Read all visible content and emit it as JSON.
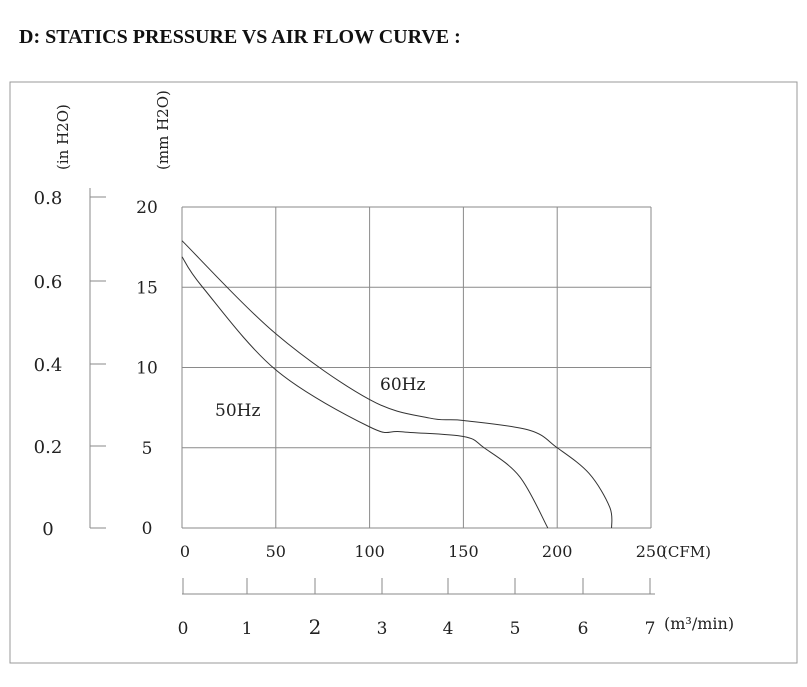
{
  "chart_data": {
    "type": "line",
    "title": "D: STATICS PRESSURE VS AIR FLOW CURVE :",
    "xlabel": "(CFM)",
    "x2label": "(m³/min)",
    "ylabel": "(mm H2O)",
    "y2label": "(in H2O)",
    "xlim": [
      0,
      250
    ],
    "ylim": [
      0,
      20
    ],
    "x_ticks": [
      "0",
      "50",
      "100",
      "150",
      "200",
      "250"
    ],
    "y_ticks": [
      "0",
      "5",
      "10",
      "15",
      "20"
    ],
    "y2_ticks": [
      "0",
      "0.2",
      "0.4",
      "0.6",
      "0.8"
    ],
    "x2_ticks": [
      "0",
      "1",
      "2",
      "3",
      "4",
      "5",
      "6",
      "7"
    ],
    "grid": true,
    "series": [
      {
        "name": "60Hz",
        "x": [
          0,
          50,
          100,
          132,
          150,
          185,
          200,
          217,
          228,
          229
        ],
        "y": [
          17.9,
          12.1,
          8.0,
          6.85,
          6.7,
          6.1,
          5.0,
          3.4,
          1.3,
          0
        ]
      },
      {
        "name": "50Hz",
        "x": [
          0,
          11,
          50,
          100,
          117,
          150,
          161,
          180,
          195
        ],
        "y": [
          16.9,
          15.0,
          9.85,
          6.3,
          6.0,
          5.7,
          5.0,
          3.2,
          0
        ]
      }
    ],
    "colors": {
      "line": "#333333",
      "grid": "#8a8a8a",
      "frame": "#999999"
    }
  }
}
